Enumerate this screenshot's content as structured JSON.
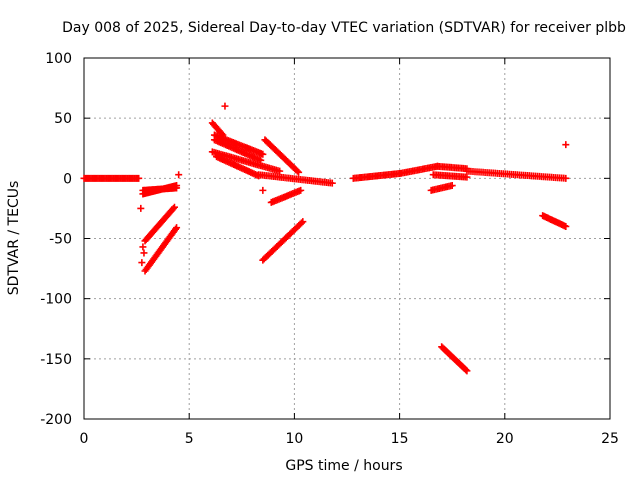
{
  "chart_data": {
    "type": "scatter",
    "title": "Day 008 of 2025, Sidereal Day-to-day VTEC variation (SDTVAR) for receiver plbb",
    "xlabel": "GPS time / hours",
    "ylabel": "SDTVAR / TECUs",
    "xlim": [
      0,
      25
    ],
    "ylim": [
      -200,
      100
    ],
    "xticks": [
      0,
      5,
      10,
      15,
      20,
      25
    ],
    "yticks": [
      -200,
      -150,
      -100,
      -50,
      0,
      50,
      100
    ],
    "grid": true,
    "marker": "+",
    "marker_color": "#ff0000",
    "series": [
      {
        "name": "SDTVAR",
        "segments": [
          {
            "x0": 0.0,
            "x1": 2.6,
            "y0": 0,
            "y1": 0,
            "n": 40
          },
          {
            "x0": 2.8,
            "x1": 4.4,
            "y0": -10,
            "y1": -8,
            "n": 28
          },
          {
            "x0": 2.8,
            "x1": 4.4,
            "y0": -13,
            "y1": -6,
            "n": 28
          },
          {
            "x0": 2.9,
            "x1": 4.4,
            "y0": -77,
            "y1": -41,
            "n": 30
          },
          {
            "x0": 2.9,
            "x1": 4.3,
            "y0": -52,
            "y1": -24,
            "n": 28
          },
          {
            "x0": 6.1,
            "x1": 6.6,
            "y0": 46,
            "y1": 36,
            "n": 10
          },
          {
            "x0": 6.2,
            "x1": 8.5,
            "y0": 36,
            "y1": 20,
            "n": 32
          },
          {
            "x0": 6.2,
            "x1": 8.4,
            "y0": 32,
            "y1": 15,
            "n": 30
          },
          {
            "x0": 6.1,
            "x1": 9.3,
            "y0": 22,
            "y1": 6,
            "n": 40
          },
          {
            "x0": 6.3,
            "x1": 8.3,
            "y0": 18,
            "y1": 2,
            "n": 28
          },
          {
            "x0": 8.6,
            "x1": 10.2,
            "y0": 32,
            "y1": 5,
            "n": 28
          },
          {
            "x0": 8.3,
            "x1": 11.8,
            "y0": 3,
            "y1": -4,
            "n": 40
          },
          {
            "x0": 8.9,
            "x1": 10.3,
            "y0": -20,
            "y1": -10,
            "n": 20
          },
          {
            "x0": 8.5,
            "x1": 10.4,
            "y0": -68,
            "y1": -36,
            "n": 32
          },
          {
            "x0": 12.8,
            "x1": 15.0,
            "y0": 0,
            "y1": 4,
            "n": 30
          },
          {
            "x0": 15.0,
            "x1": 16.8,
            "y0": 4,
            "y1": 10,
            "n": 24
          },
          {
            "x0": 16.8,
            "x1": 18.2,
            "y0": 10,
            "y1": 8,
            "n": 18
          },
          {
            "x0": 16.6,
            "x1": 18.2,
            "y0": 3,
            "y1": 1,
            "n": 20
          },
          {
            "x0": 16.5,
            "x1": 17.5,
            "y0": -10,
            "y1": -6,
            "n": 14
          },
          {
            "x0": 18.2,
            "x1": 22.9,
            "y0": 6,
            "y1": 0,
            "n": 50
          },
          {
            "x0": 17.0,
            "x1": 18.2,
            "y0": -140,
            "y1": -160,
            "n": 24
          },
          {
            "x0": 21.8,
            "x1": 22.9,
            "y0": -31,
            "y1": -40,
            "n": 18
          }
        ],
        "isolated_points": [
          {
            "x": 4.5,
            "y": 3
          },
          {
            "x": 2.7,
            "y": -25
          },
          {
            "x": 2.8,
            "y": -57
          },
          {
            "x": 2.85,
            "y": -62
          },
          {
            "x": 2.75,
            "y": -70
          },
          {
            "x": 6.7,
            "y": 60
          },
          {
            "x": 8.5,
            "y": -10
          },
          {
            "x": 22.9,
            "y": 28
          }
        ]
      }
    ]
  }
}
